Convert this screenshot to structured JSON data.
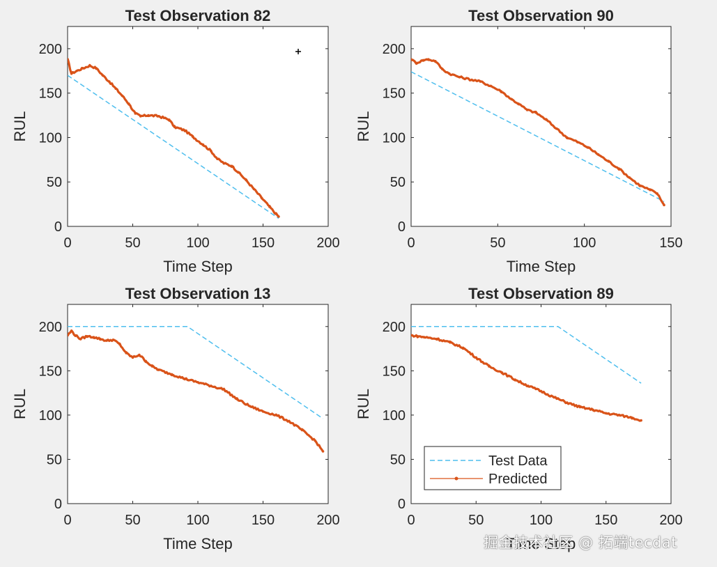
{
  "watermark": "掘金技术社区 @ 拓端tecdat",
  "colors": {
    "test": "#4DBEEE",
    "pred": "#D95319",
    "axis": "#262626",
    "bg": "#f0f0f0"
  },
  "chart_data": [
    {
      "type": "line",
      "title": "Test Observation 82",
      "xlabel": "Time Step",
      "ylabel": "RUL",
      "xlim": [
        0,
        200
      ],
      "ylim": [
        0,
        225
      ],
      "xticks": [
        0,
        50,
        100,
        150,
        200
      ],
      "yticks": [
        0,
        50,
        100,
        150,
        200
      ],
      "legend": null,
      "series": [
        {
          "name": "Test Data",
          "style": "dashed",
          "x": [
            0,
            162
          ],
          "y": [
            170,
            9
          ]
        },
        {
          "name": "Predicted",
          "style": "solid-marker",
          "x": [
            0,
            3,
            7,
            12,
            17,
            22,
            27,
            32,
            37,
            42,
            47,
            52,
            56,
            62,
            70,
            78,
            82,
            90,
            96,
            104,
            110,
            115,
            120,
            126,
            131,
            137,
            143,
            149,
            155,
            160,
            162
          ],
          "y": [
            188,
            172,
            175,
            178,
            181,
            178,
            170,
            163,
            155,
            147,
            138,
            127,
            124,
            125,
            124,
            120,
            112,
            108,
            101,
            92,
            85,
            76,
            71,
            68,
            61,
            52,
            42,
            32,
            22,
            14,
            11
          ]
        }
      ]
    },
    {
      "type": "line",
      "title": "Test Observation 90",
      "xlabel": "Time Step",
      "ylabel": "RUL",
      "xlim": [
        0,
        150
      ],
      "ylim": [
        0,
        225
      ],
      "xticks": [
        0,
        50,
        100,
        150
      ],
      "yticks": [
        0,
        50,
        100,
        150,
        200
      ],
      "legend": null,
      "series": [
        {
          "name": "Test Data",
          "style": "dashed",
          "x": [
            0,
            146
          ],
          "y": [
            174,
            28
          ]
        },
        {
          "name": "Predicted",
          "style": "solid-marker",
          "x": [
            0,
            3,
            7,
            10,
            14,
            18,
            22,
            28,
            35,
            40,
            46,
            52,
            58,
            62,
            67,
            72,
            78,
            84,
            90,
            96,
            102,
            108,
            114,
            120,
            126,
            132,
            138,
            142,
            146
          ],
          "y": [
            188,
            184,
            187,
            188,
            186,
            177,
            172,
            168,
            165,
            163,
            158,
            152,
            143,
            138,
            131,
            128,
            120,
            110,
            100,
            95,
            89,
            81,
            73,
            65,
            55,
            46,
            41,
            37,
            24
          ]
        }
      ]
    },
    {
      "type": "line",
      "title": "Test Observation 13",
      "xlabel": "Time Step",
      "ylabel": "RUL",
      "xlim": [
        0,
        200
      ],
      "ylim": [
        0,
        225
      ],
      "xticks": [
        0,
        50,
        100,
        150,
        200
      ],
      "yticks": [
        0,
        50,
        100,
        150,
        200
      ],
      "legend": null,
      "series": [
        {
          "name": "Test Data",
          "style": "dashed",
          "x": [
            0,
            92,
            196
          ],
          "y": [
            200,
            200,
            96
          ]
        },
        {
          "name": "Predicted",
          "style": "solid-marker",
          "x": [
            0,
            3,
            6,
            10,
            15,
            20,
            25,
            30,
            35,
            40,
            45,
            50,
            55,
            60,
            65,
            70,
            80,
            90,
            100,
            110,
            120,
            130,
            140,
            150,
            160,
            170,
            180,
            190,
            196
          ],
          "y": [
            190,
            195,
            190,
            186,
            189,
            188,
            186,
            184,
            185,
            180,
            170,
            165,
            168,
            161,
            155,
            151,
            146,
            141,
            137,
            133,
            129,
            118,
            110,
            104,
            100,
            93,
            83,
            71,
            59
          ]
        }
      ]
    },
    {
      "type": "line",
      "title": "Test Observation 89",
      "xlabel": "Time Step",
      "ylabel": "RUL",
      "xlim": [
        0,
        200
      ],
      "ylim": [
        0,
        225
      ],
      "xticks": [
        0,
        50,
        100,
        150,
        200
      ],
      "yticks": [
        0,
        50,
        100,
        150,
        200
      ],
      "legend": "bottom-left",
      "series": [
        {
          "name": "Test Data",
          "style": "dashed",
          "x": [
            0,
            113,
            177
          ],
          "y": [
            200,
            200,
            136
          ]
        },
        {
          "name": "Predicted",
          "style": "solid-marker",
          "x": [
            0,
            5,
            10,
            20,
            30,
            40,
            50,
            60,
            70,
            80,
            90,
            100,
            110,
            120,
            130,
            140,
            150,
            160,
            170,
            177
          ],
          "y": [
            190,
            189,
            188,
            186,
            182,
            176,
            165,
            155,
            148,
            140,
            133,
            127,
            120,
            114,
            109,
            106,
            102,
            100,
            97,
            94
          ]
        }
      ]
    }
  ]
}
